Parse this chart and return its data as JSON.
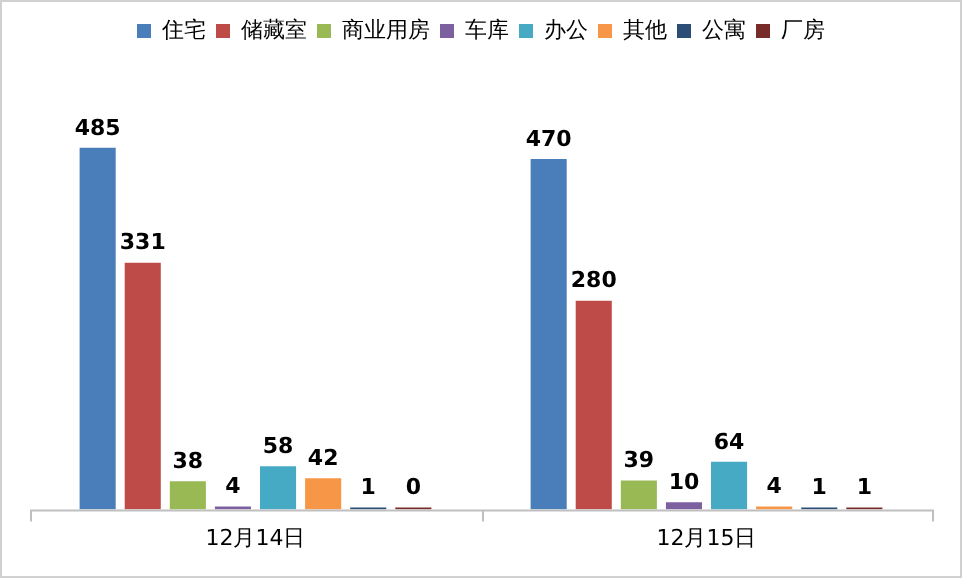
{
  "chart_data": {
    "type": "bar",
    "categories": [
      "12月14日",
      "12月15日"
    ],
    "series": [
      {
        "name": "住宅",
        "color": "#4a7ebb",
        "values": [
          485,
          470
        ]
      },
      {
        "name": "储藏室",
        "color": "#be4b48",
        "values": [
          331,
          280
        ]
      },
      {
        "name": "商业用房",
        "color": "#98b954",
        "values": [
          38,
          39
        ]
      },
      {
        "name": "车库",
        "color": "#7d60a0",
        "values": [
          4,
          10
        ]
      },
      {
        "name": "办公",
        "color": "#46aac5",
        "values": [
          58,
          64
        ]
      },
      {
        "name": "其他",
        "color": "#f79646",
        "values": [
          42,
          4
        ]
      },
      {
        "name": "公寓",
        "color": "#2c4d75",
        "values": [
          1,
          1
        ]
      },
      {
        "name": "厂房",
        "color": "#772c2a",
        "values": [
          0,
          1
        ]
      }
    ],
    "data_labels": true,
    "legend": "top",
    "grid": false,
    "tick_labels": "x"
  }
}
